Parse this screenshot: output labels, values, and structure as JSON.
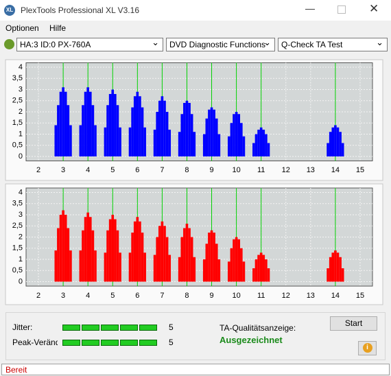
{
  "window": {
    "title": "PlexTools Professional XL V3.16",
    "icon": "XL"
  },
  "menu": [
    "Optionen",
    "Hilfe"
  ],
  "toolbar": {
    "drive": "HA:3 ID:0  PX-760A",
    "function": "DVD Diagnostic Functions",
    "test": "Q-Check TA Test"
  },
  "chart_data": [
    {
      "type": "bar",
      "color": "#0000ff",
      "grid": true,
      "marker_color": "#00d000",
      "xlim": [
        1.5,
        15.5
      ],
      "ylim": [
        -0.2,
        4.2
      ],
      "xticks": [
        2,
        3,
        4,
        5,
        6,
        7,
        8,
        9,
        10,
        11,
        12,
        13,
        14,
        15
      ],
      "yticks": [
        0,
        {
          "value": 0.5,
          "label": "0,5"
        },
        1,
        {
          "value": 1.5,
          "label": "1,5"
        },
        2,
        {
          "value": 2.5,
          "label": "2,5"
        },
        3,
        {
          "value": 3.5,
          "label": "3,5"
        },
        4
      ],
      "markers": [
        3,
        4,
        5,
        6,
        7,
        8,
        9,
        10,
        11,
        14
      ],
      "x": [
        2.7,
        2.8,
        2.9,
        3,
        3.1,
        3.2,
        3.3,
        3.7,
        3.8,
        3.9,
        4,
        4.1,
        4.2,
        4.3,
        4.7,
        4.8,
        4.9,
        5,
        5.1,
        5.2,
        5.3,
        5.7,
        5.8,
        5.9,
        6,
        6.1,
        6.2,
        6.3,
        6.7,
        6.8,
        6.9,
        7,
        7.1,
        7.2,
        7.3,
        7.7,
        7.8,
        7.9,
        8,
        8.1,
        8.2,
        8.3,
        8.7,
        8.8,
        8.9,
        9,
        9.1,
        9.2,
        9.3,
        9.7,
        9.8,
        9.9,
        10,
        10.1,
        10.2,
        10.3,
        10.7,
        10.8,
        10.9,
        11,
        11.1,
        11.2,
        11.3,
        13.7,
        13.8,
        13.9,
        14,
        14.1,
        14.2,
        14.3
      ],
      "values": [
        1.4,
        2.3,
        2.9,
        3.1,
        2.9,
        2.3,
        1.4,
        1.4,
        2.3,
        2.9,
        3.1,
        2.9,
        2.3,
        1.4,
        1.3,
        2.3,
        2.8,
        3.0,
        2.8,
        2.3,
        1.3,
        1.3,
        2.2,
        2.7,
        2.9,
        2.7,
        2.2,
        1.3,
        1.2,
        2.0,
        2.5,
        2.7,
        2.5,
        2.0,
        1.2,
        1.1,
        1.9,
        2.4,
        2.5,
        2.4,
        1.9,
        1.1,
        1.0,
        1.7,
        2.1,
        2.2,
        2.1,
        1.7,
        1.0,
        0.9,
        1.5,
        1.9,
        2.0,
        1.9,
        1.5,
        0.9,
        0.6,
        1.0,
        1.2,
        1.3,
        1.2,
        1.0,
        0.6,
        0.6,
        1.1,
        1.3,
        1.4,
        1.3,
        1.1,
        0.6
      ]
    },
    {
      "type": "bar",
      "color": "#ff0000",
      "grid": true,
      "marker_color": "#00d000",
      "xlim": [
        1.5,
        15.5
      ],
      "ylim": [
        -0.2,
        4.2
      ],
      "xticks": [
        2,
        3,
        4,
        5,
        6,
        7,
        8,
        9,
        10,
        11,
        12,
        13,
        14,
        15
      ],
      "yticks": [
        0,
        {
          "value": 0.5,
          "label": "0,5"
        },
        1,
        {
          "value": 1.5,
          "label": "1,5"
        },
        2,
        {
          "value": 2.5,
          "label": "2,5"
        },
        3,
        {
          "value": 3.5,
          "label": "3,5"
        },
        4
      ],
      "markers": [
        3,
        4,
        5,
        6,
        7,
        8,
        9,
        10,
        11,
        14
      ],
      "x": [
        2.7,
        2.8,
        2.9,
        3,
        3.1,
        3.2,
        3.3,
        3.7,
        3.8,
        3.9,
        4,
        4.1,
        4.2,
        4.3,
        4.7,
        4.8,
        4.9,
        5,
        5.1,
        5.2,
        5.3,
        5.7,
        5.8,
        5.9,
        6,
        6.1,
        6.2,
        6.3,
        6.7,
        6.8,
        6.9,
        7,
        7.1,
        7.2,
        7.3,
        7.7,
        7.8,
        7.9,
        8,
        8.1,
        8.2,
        8.3,
        8.7,
        8.8,
        8.9,
        9,
        9.1,
        9.2,
        9.3,
        9.7,
        9.8,
        9.9,
        10,
        10.1,
        10.2,
        10.3,
        10.7,
        10.8,
        10.9,
        11,
        11.1,
        11.2,
        11.3,
        13.7,
        13.8,
        13.9,
        14,
        14.1,
        14.2,
        14.3
      ],
      "values": [
        1.4,
        2.4,
        3.0,
        3.2,
        3.0,
        2.4,
        1.4,
        1.4,
        2.3,
        2.9,
        3.1,
        2.9,
        2.3,
        1.4,
        1.3,
        2.3,
        2.8,
        3.0,
        2.8,
        2.3,
        1.3,
        1.3,
        2.2,
        2.7,
        2.9,
        2.7,
        2.2,
        1.3,
        1.2,
        2.0,
        2.5,
        2.7,
        2.5,
        2.0,
        1.2,
        1.1,
        2.0,
        2.4,
        2.6,
        2.4,
        2.0,
        1.1,
        1.0,
        1.7,
        2.2,
        2.3,
        2.2,
        1.7,
        1.0,
        0.9,
        1.5,
        1.9,
        2.0,
        1.9,
        1.5,
        0.9,
        0.6,
        1.0,
        1.2,
        1.3,
        1.2,
        1.0,
        0.6,
        0.6,
        1.1,
        1.3,
        1.4,
        1.3,
        1.1,
        0.6
      ]
    }
  ],
  "results": {
    "jitter": {
      "label": "Jitter:",
      "value": 5
    },
    "peak": {
      "label": "Peak-Veränd",
      "value": 5
    },
    "quality_label": "TA-Qualitätsanzeige:",
    "quality": "Ausgezeichnet"
  },
  "buttons": {
    "start": "Start"
  },
  "status": "Bereit"
}
